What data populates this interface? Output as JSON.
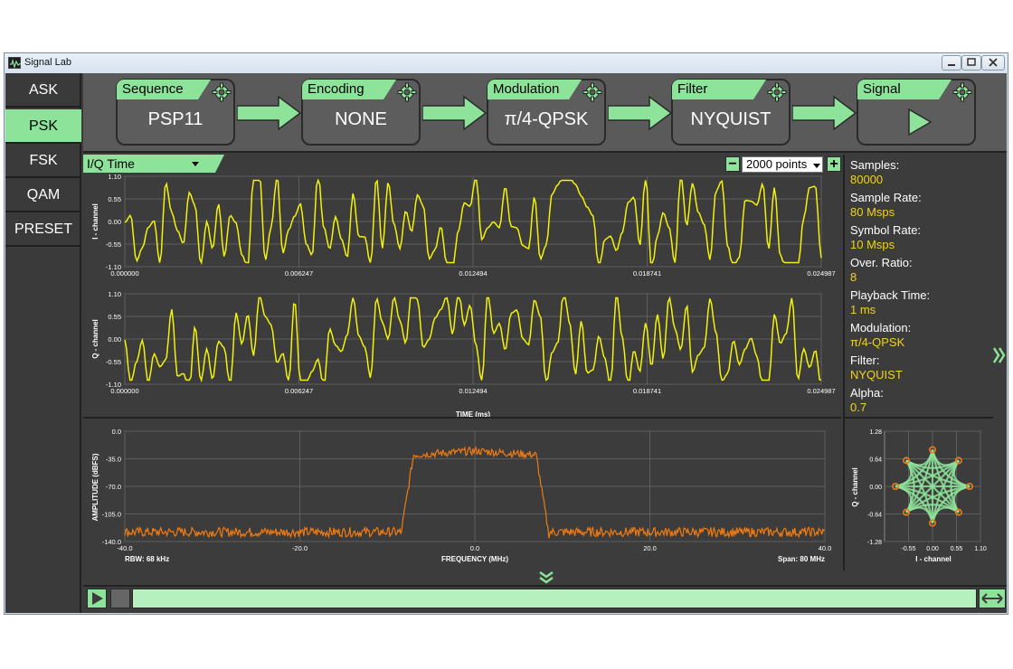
{
  "window": {
    "title": "Signal Lab"
  },
  "nav": {
    "items": [
      {
        "label": "ASK",
        "active": false
      },
      {
        "label": "PSK",
        "active": true
      },
      {
        "label": "FSK",
        "active": false
      },
      {
        "label": "QAM",
        "active": false
      },
      {
        "label": "PRESET",
        "active": false
      }
    ]
  },
  "pipeline": {
    "stages": [
      {
        "label": "Sequence",
        "value": "PSP11"
      },
      {
        "label": "Encoding",
        "value": "NONE"
      },
      {
        "label": "Modulation",
        "value": "π/4-QPSK"
      },
      {
        "label": "Filter",
        "value": "NYQUIST"
      },
      {
        "label": "Signal",
        "value": ""
      }
    ]
  },
  "view": {
    "selected": "I/Q Time",
    "points": "2000 points",
    "minus": "−",
    "plus": "+"
  },
  "info": [
    {
      "label": "Samples:",
      "value": "80000"
    },
    {
      "label": "Sample Rate:",
      "value": "80 Msps"
    },
    {
      "label": "Symbol Rate:",
      "value": "10 Msps"
    },
    {
      "label": "Over. Ratio:",
      "value": "8"
    },
    {
      "label": "Playback Time:",
      "value": "1 ms"
    },
    {
      "label": "Modulation:",
      "value": "π/4-QPSK"
    },
    {
      "label": "Filter:",
      "value": "NYQUIST"
    },
    {
      "label": "Alpha:",
      "value": "0.7"
    }
  ],
  "colors": {
    "accent": "#8ee39a",
    "trace_time": "#f2f20a",
    "trace_spectrum": "#f07a12",
    "value_text": "#f2d21b"
  },
  "chart_data": [
    {
      "type": "line",
      "name": "i-channel",
      "ylabel": "I - channel",
      "ylim": [
        -1.1,
        1.1
      ],
      "yticks": [
        "1.10",
        "0.55",
        "0.00",
        "-0.55",
        "-1.10"
      ],
      "xlim": [
        0.0,
        0.024987
      ],
      "xticks": [
        "0.000000",
        "0.006247",
        "0.012494",
        "0.018741",
        "0.024987"
      ],
      "samples": 2000
    },
    {
      "type": "line",
      "name": "q-channel",
      "ylabel": "Q - channel",
      "xlabel": "TIME (ms)",
      "ylim": [
        -1.1,
        1.1
      ],
      "yticks": [
        "1.10",
        "0.55",
        "0.00",
        "-0.55",
        "-1.10"
      ],
      "xlim": [
        0.0,
        0.024987
      ],
      "xticks": [
        "0.000000",
        "0.006247",
        "0.012494",
        "0.018741",
        "0.024987"
      ],
      "samples": 2000
    },
    {
      "type": "line",
      "name": "spectrum",
      "xlabel": "FREQUENCY (MHz)",
      "ylabel": "AMPLITUDE (dBFS)",
      "xlim": [
        -40.0,
        40.0
      ],
      "ylim": [
        -140.0,
        0.0
      ],
      "xticks": [
        "-40.0",
        "-20.0",
        "0.0",
        "20.0",
        "40.0"
      ],
      "yticks": [
        "0.0",
        "-35.0",
        "-70.0",
        "-105.0",
        "-140.0"
      ],
      "rbw": "RBW: 68 kHz",
      "span": "Span: 80 MHz",
      "band_edges_mhz": [
        -8.5,
        8.5
      ],
      "passband_level_dbfs": -25,
      "noise_floor_dbfs": -128
    },
    {
      "type": "scatter",
      "name": "constellation",
      "xlabel": "I - channel",
      "ylabel": "Q - channel",
      "xlim": [
        -1.1,
        1.1
      ],
      "ylim": [
        -1.28,
        1.28
      ],
      "xticks": [
        "-0.55",
        "0.00",
        "0.55",
        "1.10"
      ],
      "yticks": [
        "1.28",
        "0.64",
        "0.00",
        "-0.64",
        "-1.28"
      ],
      "points": [
        [
          1,
          0
        ],
        [
          0.7071,
          0.7071
        ],
        [
          0,
          1
        ],
        [
          -0.7071,
          0.7071
        ],
        [
          -1,
          0
        ],
        [
          -0.7071,
          -0.7071
        ],
        [
          0,
          -1
        ],
        [
          0.7071,
          -0.7071
        ]
      ]
    }
  ]
}
